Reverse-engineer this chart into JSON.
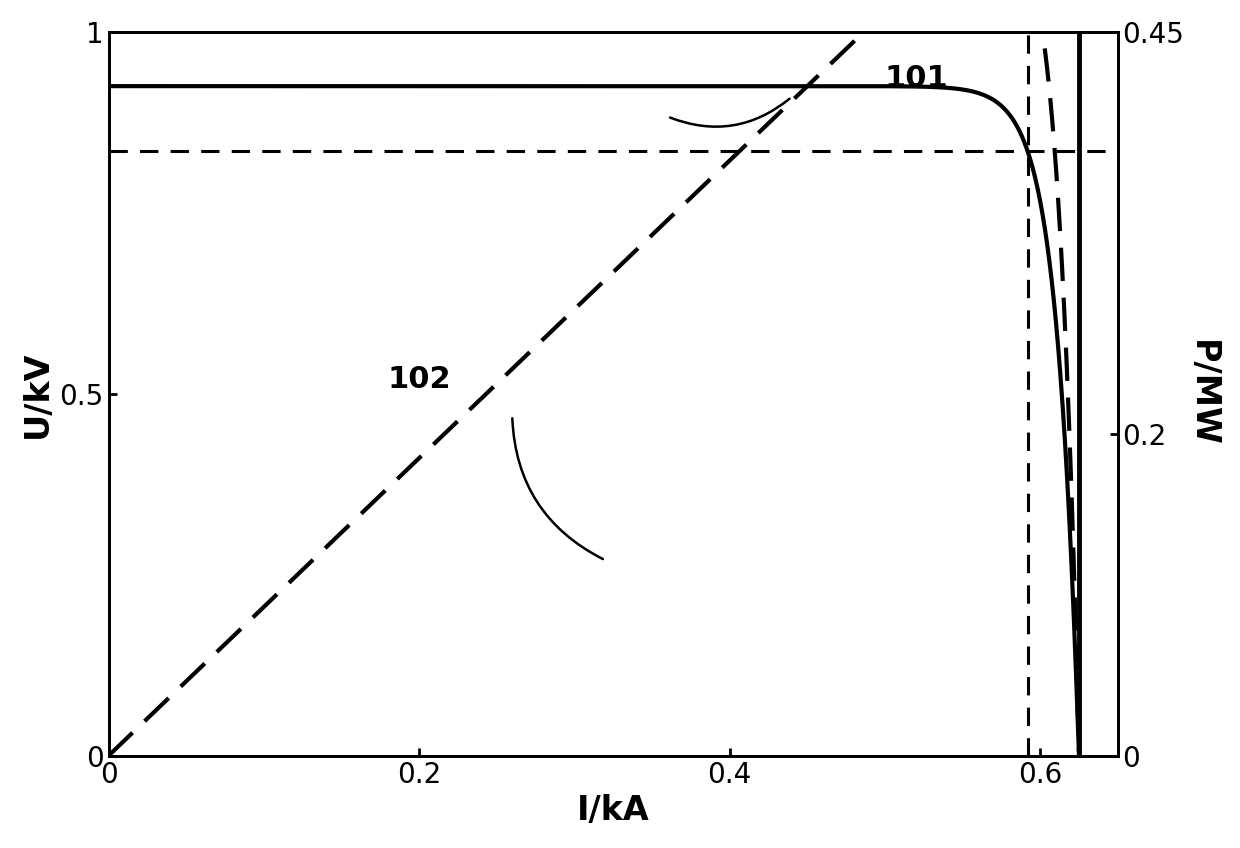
{
  "title": "",
  "xlabel": "I/kA",
  "ylabel_left": "U/kV",
  "ylabel_right": "P/MW",
  "xlim": [
    0,
    0.65
  ],
  "ylim_left": [
    0,
    1.0
  ],
  "ylim_right": [
    0,
    0.45
  ],
  "xticks": [
    0,
    0.2,
    0.4,
    0.6
  ],
  "yticks_left": [
    0,
    0.5,
    1.0
  ],
  "yticks_right": [
    0,
    0.2,
    0.45
  ],
  "label_101": "101",
  "label_102": "102",
  "vline_dotted_x": 0.592,
  "vline_solid_x": 0.625,
  "hline_y": 0.835,
  "Isc": 0.625,
  "Voc": 0.925,
  "Impp": 0.592,
  "Vmpp": 0.835,
  "line_color": "black",
  "background_color": "white",
  "lw_main": 3.0,
  "lw_ref": 2.2
}
